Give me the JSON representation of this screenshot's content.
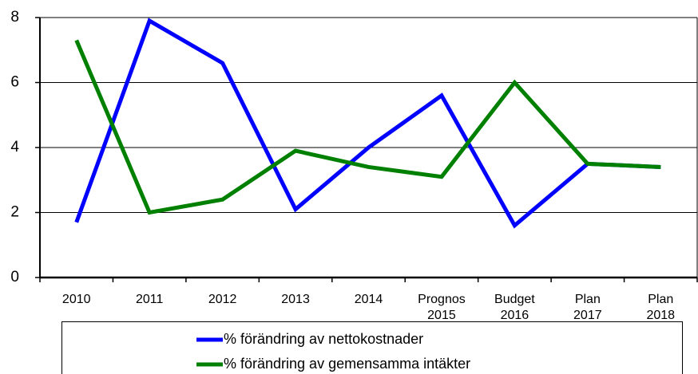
{
  "chart_data": {
    "type": "line",
    "categories": [
      "2010",
      "2011",
      "2012",
      "2013",
      "2014",
      "Prognos 2015",
      "Budget 2016",
      "Plan 2017",
      "Plan 2018"
    ],
    "series": [
      {
        "name": "% förändring av nettokostnader",
        "color": "#0000ff",
        "values": [
          1.7,
          7.9,
          6.6,
          2.1,
          4.0,
          5.6,
          1.6,
          3.5,
          3.4
        ]
      },
      {
        "name": "% förändring av gemensamma intäkter",
        "color": "#008000",
        "values": [
          7.3,
          2.0,
          2.4,
          3.9,
          3.4,
          3.1,
          6.0,
          3.5,
          3.4
        ]
      }
    ],
    "ylim": [
      0,
      8
    ],
    "yticks": [
      0,
      2,
      4,
      6,
      8
    ],
    "grid": true,
    "legend": "bottom"
  }
}
